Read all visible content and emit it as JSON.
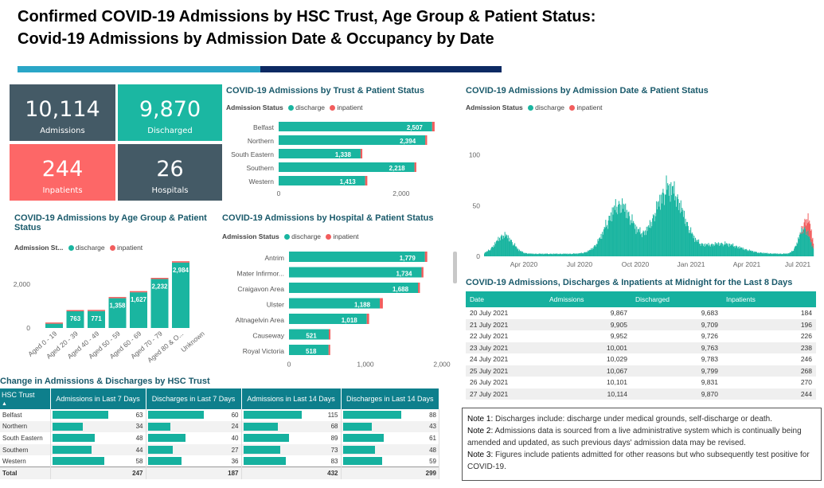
{
  "header": {
    "title1": "Confirmed COVID-19 Admissions by HSC Trust, Age Group & Patient Status:",
    "title2": "Covid-19 Admissions by Admission Date & Occupancy by Date"
  },
  "colors": {
    "discharge": "#1ab5a0",
    "inpatient": "#f25d5d",
    "kpi_dark": "#445a66",
    "kpi_teal": "#1bb7a2",
    "kpi_red": "#fd6767"
  },
  "kpis": [
    {
      "value": "10,114",
      "label": "Admissions"
    },
    {
      "value": "9,870",
      "label": "Discharged"
    },
    {
      "value": "244",
      "label": "Inpatients"
    },
    {
      "value": "26",
      "label": "Hospitals"
    }
  ],
  "legend": {
    "prefix": "Admission Status",
    "prefix_short": "Admission St...",
    "discharge": "discharge",
    "inpatient": "inpatient"
  },
  "trust_chart": {
    "title": "COVID-19 Admissions by Trust & Patient Status",
    "xticks": [
      "0",
      "2,000"
    ],
    "rows": [
      {
        "name": "Belfast",
        "label": "2,507",
        "discharge": 2507,
        "inpatient": 40
      },
      {
        "name": "Northern",
        "label": "2,394",
        "discharge": 2394,
        "inpatient": 30
      },
      {
        "name": "South Eastern",
        "label": "1,338",
        "discharge": 1338,
        "inpatient": 28
      },
      {
        "name": "Southern",
        "label": "2,218",
        "discharge": 2218,
        "inpatient": 30
      },
      {
        "name": "Western",
        "label": "1,413",
        "discharge": 1413,
        "inpatient": 35
      }
    ]
  },
  "age_chart": {
    "title1": "COVID-19 Admissions by Age Group & Patient",
    "title2": "Status",
    "yticks": [
      "2,000",
      "0"
    ],
    "cols": [
      {
        "name": "Aged 0 - 19",
        "label": "",
        "discharge": 195,
        "inpatient": 5
      },
      {
        "name": "Aged 20 - 39",
        "label": "763",
        "discharge": 763,
        "inpatient": 12
      },
      {
        "name": "Aged 40 - 49",
        "label": "771",
        "discharge": 771,
        "inpatient": 12
      },
      {
        "name": "Aged 50 - 59",
        "label": "1,358",
        "discharge": 1358,
        "inpatient": 20
      },
      {
        "name": "Aged 60 - 69",
        "label": "1,627",
        "discharge": 1627,
        "inpatient": 25
      },
      {
        "name": "Aged 70 - 79",
        "label": "2,232",
        "discharge": 2232,
        "inpatient": 40
      },
      {
        "name": "Aged 80 & O...",
        "label": "2,984",
        "discharge": 2984,
        "inpatient": 60
      },
      {
        "name": "Unknown",
        "label": "",
        "discharge": 0,
        "inpatient": 0
      }
    ]
  },
  "hospital_chart": {
    "title": "COVID-19 Admissions by Hospital & Patient Status",
    "xticks": [
      "0",
      "1,000",
      "2,000"
    ],
    "rows": [
      {
        "name": "Antrim",
        "label": "1,779",
        "discharge": 1779,
        "inpatient": 30
      },
      {
        "name": "Mater Infirmor...",
        "label": "1,734",
        "discharge": 1734,
        "inpatient": 25
      },
      {
        "name": "Craigavon Area",
        "label": "1,688",
        "discharge": 1688,
        "inpatient": 25
      },
      {
        "name": "Ulster",
        "label": "1,188",
        "discharge": 1188,
        "inpatient": 40
      },
      {
        "name": "Altnagelvin Area",
        "label": "1,018",
        "discharge": 1018,
        "inpatient": 30
      },
      {
        "name": "Causeway",
        "label": "521",
        "discharge": 521,
        "inpatient": 5
      },
      {
        "name": "Royal Victoria",
        "label": "518",
        "discharge": 518,
        "inpatient": 5
      }
    ]
  },
  "date_chart": {
    "title": "COVID-19 Admissions by Admission Date & Patient Status",
    "yticks": [
      "100",
      "50",
      "0"
    ],
    "xticks": [
      "Apr 2020",
      "Jul 2020",
      "Oct 2020",
      "Jan 2021",
      "Apr 2021",
      "Jul 2021"
    ]
  },
  "chart_data": [
    {
      "type": "bar",
      "title": "COVID-19 Admissions by Trust & Patient Status",
      "categories": [
        "Belfast",
        "Northern",
        "South Eastern",
        "Southern",
        "Western"
      ],
      "series": [
        {
          "name": "discharge",
          "values": [
            2507,
            2394,
            1338,
            2218,
            1413
          ]
        },
        {
          "name": "inpatient",
          "values": [
            40,
            30,
            28,
            30,
            35
          ]
        }
      ]
    },
    {
      "type": "bar",
      "title": "COVID-19 Admissions by Age Group & Patient Status",
      "categories": [
        "Aged 0 - 19",
        "Aged 20 - 39",
        "Aged 40 - 49",
        "Aged 50 - 59",
        "Aged 60 - 69",
        "Aged 70 - 79",
        "Aged 80 & O...",
        "Unknown"
      ],
      "series": [
        {
          "name": "discharge",
          "values": [
            195,
            763,
            771,
            1358,
            1627,
            2232,
            2984,
            0
          ]
        },
        {
          "name": "inpatient",
          "values": [
            5,
            12,
            12,
            20,
            25,
            40,
            60,
            0
          ]
        }
      ]
    },
    {
      "type": "bar",
      "title": "COVID-19 Admissions by Hospital & Patient Status",
      "categories": [
        "Antrim",
        "Mater Infirmor...",
        "Craigavon Area",
        "Ulster",
        "Altnagelvin Area",
        "Causeway",
        "Royal Victoria"
      ],
      "series": [
        {
          "name": "discharge",
          "values": [
            1779,
            1734,
            1688,
            1188,
            1018,
            521,
            518
          ]
        },
        {
          "name": "inpatient",
          "values": [
            30,
            25,
            25,
            40,
            30,
            5,
            5
          ]
        }
      ]
    },
    {
      "type": "bar",
      "title": "COVID-19 Admissions by Admission Date & Patient Status",
      "x": [
        "2020-04",
        "2020-07",
        "2020-10",
        "2021-01",
        "2021-04",
        "2021-07"
      ],
      "series": [
        {
          "name": "discharge",
          "values": [
            22,
            2,
            60,
            85,
            14,
            25
          ]
        },
        {
          "name": "inpatient",
          "values": [
            0,
            0,
            0,
            0,
            0,
            20
          ]
        }
      ],
      "ylim": [
        0,
        110
      ]
    }
  ],
  "midnight_table": {
    "title": "COVID-19 Admissions, Discharges & Inpatients at Midnight for the Last 8 Days",
    "headers": [
      "Date",
      "Admissions",
      "Discharged",
      "Inpatients"
    ],
    "rows": [
      [
        "20 July 2021",
        "9,867",
        "9,683",
        "184"
      ],
      [
        "21 July 2021",
        "9,905",
        "9,709",
        "196"
      ],
      [
        "22 July 2021",
        "9,952",
        "9,726",
        "226"
      ],
      [
        "23 July 2021",
        "10,001",
        "9,763",
        "238"
      ],
      [
        "24 July 2021",
        "10,029",
        "9,783",
        "246"
      ],
      [
        "25 July 2021",
        "10,067",
        "9,799",
        "268"
      ],
      [
        "26 July 2021",
        "10,101",
        "9,831",
        "270"
      ],
      [
        "27 July 2021",
        "10,114",
        "9,870",
        "244"
      ]
    ]
  },
  "change_table": {
    "title": "Change in Admissions & Discharges by HSC Trust",
    "headers": [
      "HSC Trust",
      "Admissions in Last 7 Days",
      "Discharges in Last 7 Days",
      "Admissions in Last 14 Days",
      "Discharges in Last 14 Days"
    ],
    "rows": [
      [
        "Belfast",
        "63",
        "60",
        "115",
        "88"
      ],
      [
        "Northern",
        "34",
        "24",
        "68",
        "43"
      ],
      [
        "South Eastern",
        "48",
        "40",
        "89",
        "61"
      ],
      [
        "Southern",
        "44",
        "27",
        "73",
        "48"
      ],
      [
        "Western",
        "58",
        "36",
        "83",
        "59"
      ]
    ],
    "total": [
      "Total",
      "247",
      "187",
      "432",
      "299"
    ]
  },
  "notes": [
    {
      "label": "Note 1:",
      "text": " Discharges include: discharge under medical grounds, self-discharge or death."
    },
    {
      "label": "Note 2:",
      "text": " Admissions data is sourced from a live administrative system which is continually being amended and updated, as such previous days' admission data may be revised."
    },
    {
      "label": "Note 3:",
      "text": " Figures include patients admitted for other reasons but who subsequently test positive for COVID-19."
    }
  ]
}
